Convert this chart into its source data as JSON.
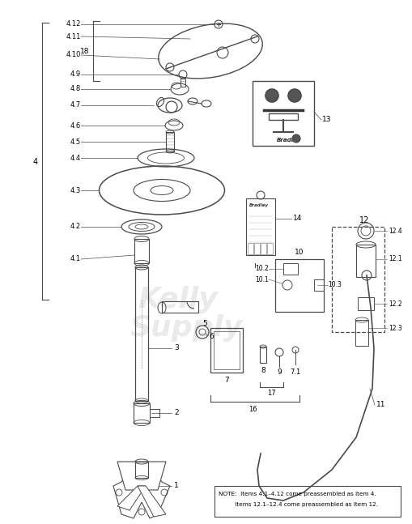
{
  "bg_color": "#ffffff",
  "line_color": "#4a4a4a",
  "label_color": "#000000",
  "note_text_line1": "NOTE:  Items 4.1–4.12 come preassembled as Item 4.",
  "note_text_line2": "         Items 12.1–12.4 come preassembled as Item 12.",
  "watermark_line1": "Kelly",
  "watermark_line2": "Supply",
  "fig_w": 5.09,
  "fig_h": 6.47,
  "dpi": 100
}
